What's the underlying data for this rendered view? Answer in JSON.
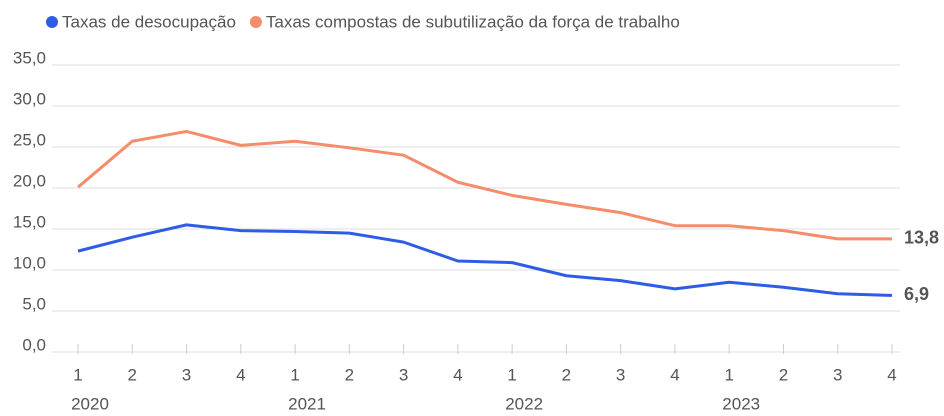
{
  "chart_data": {
    "type": "line",
    "categories": [
      "1",
      "2",
      "3",
      "4",
      "1",
      "2",
      "3",
      "4",
      "1",
      "2",
      "3",
      "4",
      "1",
      "2",
      "3",
      "4"
    ],
    "years": [
      "2020",
      "2021",
      "2022",
      "2023"
    ],
    "series": [
      {
        "name": "Taxas de desocupação",
        "color": "#2e5ce6",
        "values": [
          12.3,
          14.0,
          15.5,
          14.8,
          14.7,
          14.5,
          13.4,
          11.1,
          10.9,
          9.3,
          8.7,
          7.7,
          8.5,
          7.9,
          7.1,
          6.9
        ],
        "value_labels": [
          null,
          null,
          null,
          null,
          null,
          null,
          null,
          null,
          null,
          null,
          null,
          null,
          null,
          null,
          null,
          "6,9"
        ]
      },
      {
        "name": "Taxas compostas de subutilização da força de trabalho",
        "color": "#f58c6c",
        "values": [
          20.1,
          25.7,
          26.9,
          25.2,
          25.7,
          24.9,
          24.0,
          20.7,
          19.1,
          18.0,
          17.0,
          15.4,
          15.4,
          14.8,
          13.8,
          13.8
        ],
        "value_labels": [
          null,
          null,
          null,
          null,
          null,
          null,
          null,
          null,
          null,
          null,
          null,
          null,
          null,
          null,
          null,
          "13,8"
        ]
      }
    ],
    "ylim": [
      0,
      35
    ],
    "yticks": [
      {
        "value": 0,
        "label": "0,0"
      },
      {
        "value": 5,
        "label": "5,0"
      },
      {
        "value": 10,
        "label": "10,0"
      },
      {
        "value": 15,
        "label": "15,0"
      },
      {
        "value": 20,
        "label": "20,0"
      },
      {
        "value": 25,
        "label": "25,0"
      },
      {
        "value": 30,
        "label": "30,0"
      },
      {
        "value": 35,
        "label": "35,0"
      }
    ],
    "grid": true
  }
}
